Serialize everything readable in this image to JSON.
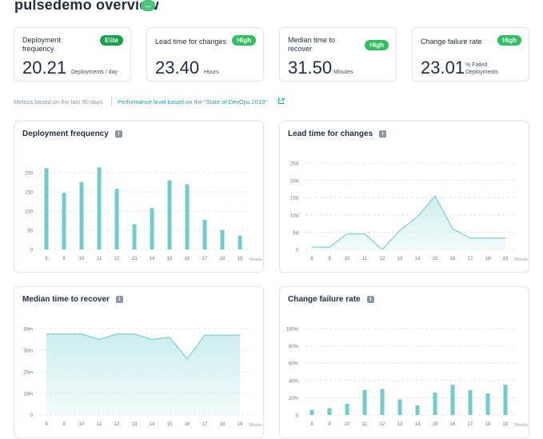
{
  "header": {
    "title": "pulsedemo overview",
    "status_dot": "..."
  },
  "kpis": [
    {
      "label": "Deployment frequency",
      "badge": "Elite",
      "value": "20.21",
      "unit": "Deployments / day"
    },
    {
      "label": "Lead time for changes",
      "badge": "High",
      "value": "23.40",
      "unit": "Hours"
    },
    {
      "label": "Median time to recover",
      "badge": "High",
      "value": "31.50",
      "unit": "Minutes"
    },
    {
      "label": "Change failure rate",
      "badge": "High",
      "value": "23.01",
      "unit": "% Failed Deployments"
    }
  ],
  "notes": {
    "metrics": "Metrics based on the last 90 days",
    "perf_link": "Performance level based on the \"State of DevOps 2019\""
  },
  "colors": {
    "bar": "#72cccc",
    "line": "#7ecfcf",
    "area": "#cdeeee",
    "grid": "#d8dee5",
    "axis": "#6b7785"
  },
  "chart_data": [
    {
      "type": "bar",
      "title": "Deployment frequency",
      "xlabel": "Weeks",
      "categories": [
        "8",
        "9",
        "10",
        "11",
        "12",
        "13",
        "14",
        "15",
        "16",
        "17",
        "18",
        "19"
      ],
      "values": [
        212,
        148,
        176,
        214,
        158,
        66,
        108,
        180,
        170,
        77,
        51,
        36
      ],
      "ylim": [
        0,
        225
      ],
      "yticks": [
        0,
        50,
        100,
        150,
        200
      ],
      "ytick_labels": [
        "0",
        "50",
        "100",
        "150",
        "200"
      ]
    },
    {
      "type": "area",
      "title": "Lead time for changes",
      "xlabel": "Weeks",
      "categories": [
        "8",
        "9",
        "10",
        "11",
        "12",
        "13",
        "14",
        "15",
        "16",
        "17",
        "18",
        "19"
      ],
      "values": [
        0.7,
        0.7,
        4.5,
        4.5,
        0,
        5.5,
        9.5,
        15.5,
        6,
        3.3,
        3.3,
        3.3
      ],
      "ylim": [
        0,
        25
      ],
      "yticks": [
        0,
        5,
        10,
        15,
        20,
        25
      ],
      "ytick_labels": [
        "0",
        "5d",
        "10d",
        "15d",
        "20d",
        "25d"
      ]
    },
    {
      "type": "area",
      "title": "Median time to recover",
      "xlabel": "Weeks",
      "categories": [
        "8",
        "9",
        "10",
        "11",
        "12",
        "13",
        "14",
        "15",
        "16",
        "17",
        "18",
        "19"
      ],
      "values": [
        37.5,
        37.5,
        37.5,
        35,
        37.5,
        37.5,
        35,
        36,
        26,
        37,
        37,
        37
      ],
      "ylim": [
        0,
        40
      ],
      "yticks": [
        0,
        10,
        20,
        30,
        40
      ],
      "ytick_labels": [
        "0",
        "10m",
        "20m",
        "30m",
        "40m"
      ]
    },
    {
      "type": "bar",
      "title": "Change failure rate",
      "xlabel": "Weeks",
      "categories": [
        "8",
        "9",
        "10",
        "11",
        "12",
        "13",
        "14",
        "15",
        "16",
        "17",
        "18",
        "19"
      ],
      "values": [
        6,
        8,
        13,
        29,
        30,
        18,
        11,
        26,
        35,
        29,
        25,
        35
      ],
      "ylim": [
        0,
        100
      ],
      "yticks": [
        0,
        20,
        40,
        60,
        80,
        100
      ],
      "ytick_labels": [
        "0",
        "20%",
        "40%",
        "60%",
        "80%",
        "100%"
      ]
    }
  ]
}
